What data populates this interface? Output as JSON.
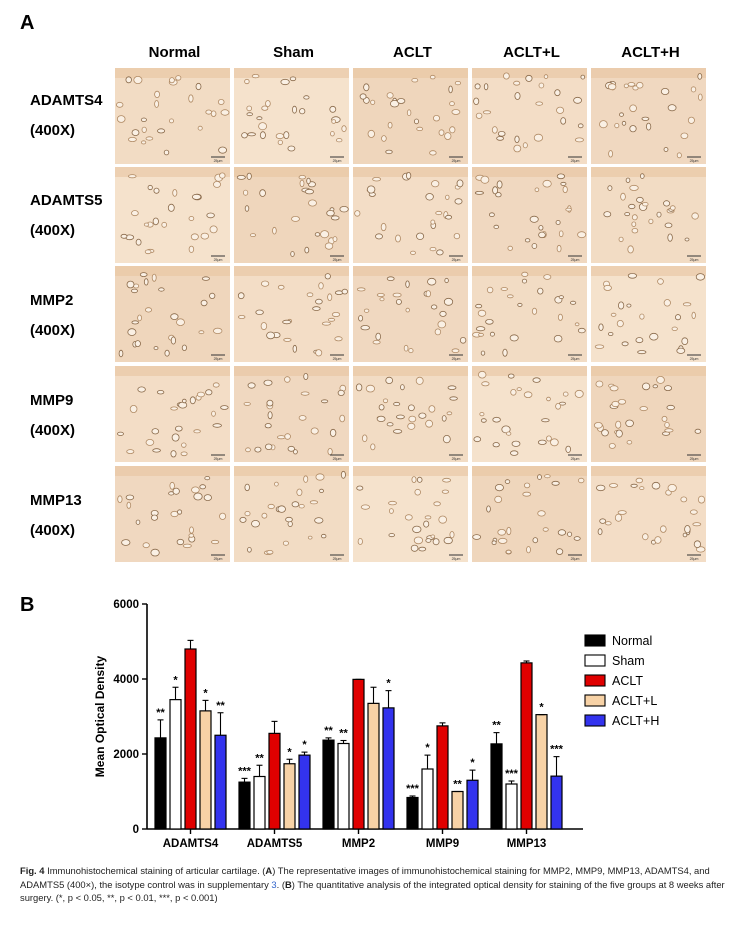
{
  "panel_a": {
    "label": "A",
    "columns": [
      "Normal",
      "Sham",
      "ACLT",
      "ACLT+L",
      "ACLT+H"
    ],
    "rows": [
      {
        "name": "ADAMTS4",
        "mag": "(400X)"
      },
      {
        "name": "ADAMTS5",
        "mag": "(400X)"
      },
      {
        "name": "MMP2",
        "mag": "(400X)"
      },
      {
        "name": "MMP9",
        "mag": "(400X)"
      },
      {
        "name": "MMP13",
        "mag": "(400X)"
      }
    ],
    "scale_bar_label": "25μm"
  },
  "panel_b": {
    "label": "B"
  },
  "chart_data": {
    "type": "bar",
    "ylabel": "Mean Optical Density",
    "xlabel": "",
    "ylim": [
      0,
      6000
    ],
    "yticks": [
      0,
      2000,
      4000,
      6000
    ],
    "categories": [
      "ADAMTS4",
      "ADAMTS5",
      "MMP2",
      "MMP9",
      "MMP13"
    ],
    "legend_position": "right",
    "series": [
      {
        "name": "Normal",
        "color": "#000000",
        "values": [
          2430,
          1250,
          2370,
          840,
          2270
        ],
        "errors": [
          480,
          100,
          60,
          40,
          300
        ],
        "sig": [
          "**",
          "***",
          "**",
          "***",
          "**"
        ]
      },
      {
        "name": "Sham",
        "color": "#ffffff",
        "values": [
          3450,
          1400,
          2280,
          1600,
          1200
        ],
        "errors": [
          330,
          300,
          80,
          370,
          80
        ],
        "sig": [
          "*",
          "**",
          "**",
          "*",
          "***"
        ]
      },
      {
        "name": "ACLT",
        "color": "#e00000",
        "values": [
          4800,
          2550,
          3990,
          2750,
          4430
        ],
        "errors": [
          230,
          320,
          0,
          80,
          50
        ],
        "sig": [
          "",
          "",
          "",
          "",
          ""
        ]
      },
      {
        "name": "ACLT+L",
        "color": "#f7d2a6",
        "values": [
          3150,
          1740,
          3350,
          1000,
          3050
        ],
        "errors": [
          280,
          120,
          430,
          0,
          0
        ],
        "sig": [
          "*",
          "*",
          "",
          "**",
          "*"
        ]
      },
      {
        "name": "ACLT+H",
        "color": "#3333ee",
        "values": [
          2500,
          1970,
          3230,
          1300,
          1410
        ],
        "errors": [
          600,
          80,
          460,
          270,
          520
        ],
        "sig": [
          "**",
          "*",
          "*",
          "*",
          "***"
        ]
      }
    ]
  },
  "caption": {
    "fig": "Fig. 4",
    "t1": "Immunohistochemical staining of articular cartilage. (",
    "a": "A",
    "t2": ") The representative images of immunohistochemical staining for MMP2, MMP9, MMP13, ADAMTS4, and ADAMTS5 (400×), the isotype control was in supplementary ",
    "ref": "3",
    "t3": ". (",
    "b": "B",
    "t4": ") The quantitative analysis of the integrated optical density for staining of the five groups at 8 weeks after surgery. (*, p < 0.05, **, p < 0.01, ***, p < 0.001)"
  }
}
